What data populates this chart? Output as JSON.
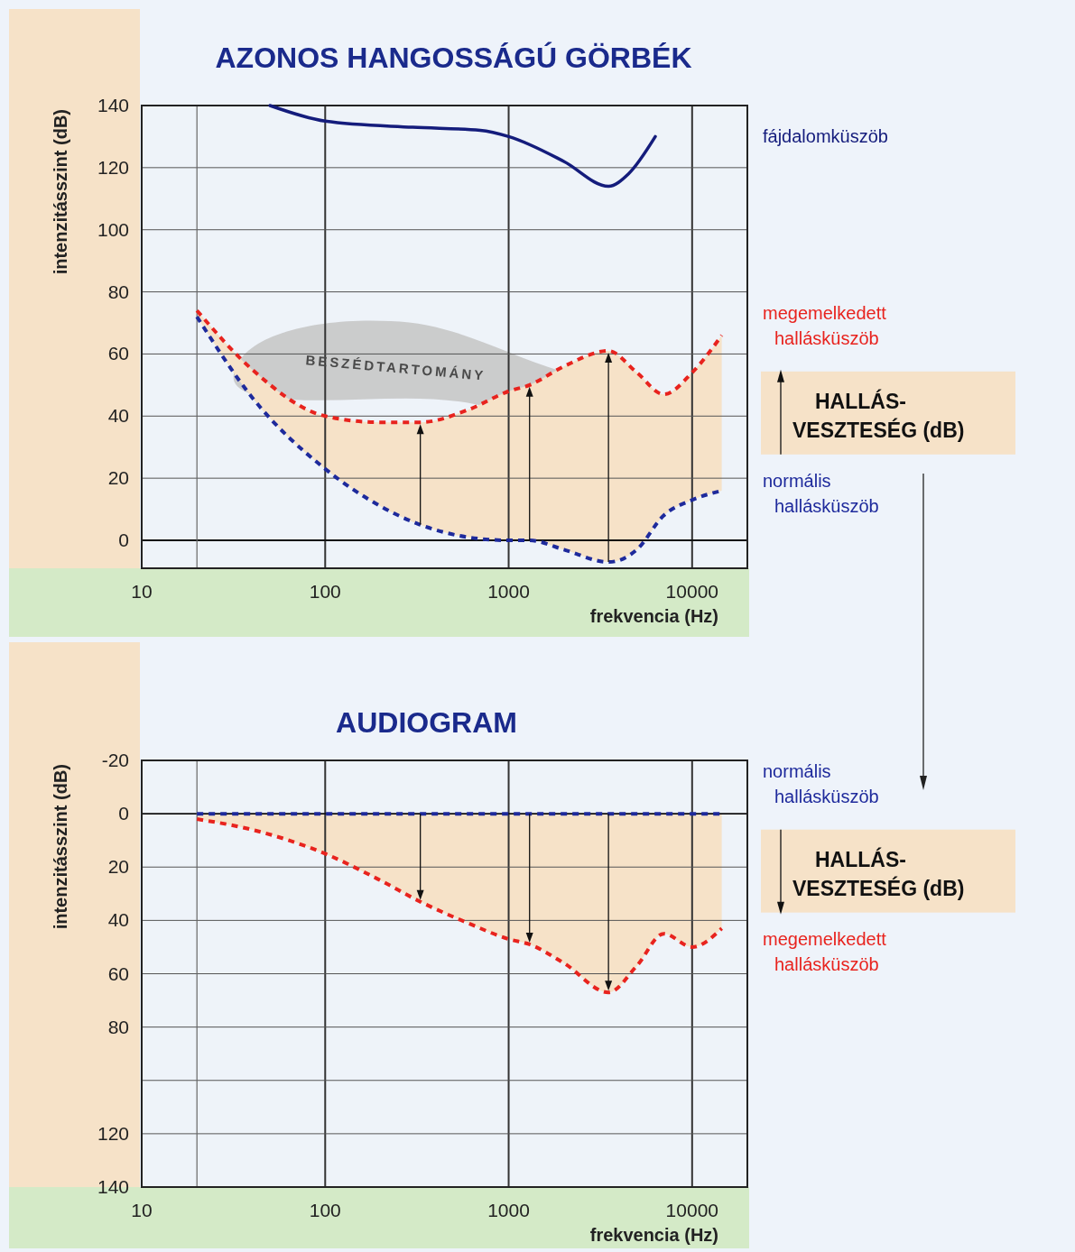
{
  "chart_data": [
    {
      "type": "line",
      "title": "AZONOS HANGOSSÁGÚ GÖRBÉK",
      "xlabel": "frekvencia (Hz)",
      "ylabel": "intenzitásszint (dB)",
      "log": "x",
      "grid": true,
      "legend": false,
      "xlim": [
        10,
        20000
      ],
      "xticks": [
        10,
        100,
        1000,
        10000
      ],
      "ylim": [
        -9,
        140
      ],
      "yticks": [
        0,
        20,
        40,
        60,
        80,
        100,
        120,
        140
      ],
      "ref_lines": [
        {
          "axis": "x",
          "value": 20,
          "color": "#666666"
        }
      ],
      "annotations": [
        "BESZÉDTARTOMÁNY",
        "HALLÁS-VESZTESÉG (dB)"
      ],
      "series": [
        {
          "name": "fájdalomküszöb",
          "color": "#141c7c",
          "line_style": "solid",
          "x": [
            50,
            100,
            300,
            700,
            1000,
            2000,
            3500,
            4500,
            6300
          ],
          "values": [
            140,
            135,
            133,
            132,
            130,
            122,
            114,
            118,
            130
          ]
        },
        {
          "name": "megemelkedett hallásküszöb",
          "color": "#e8231e",
          "line_style": "dashed",
          "x": [
            20,
            40,
            100,
            200,
            330,
            600,
            1000,
            1300,
            2000,
            3500,
            5000,
            7000,
            10000,
            14500
          ],
          "values": [
            74,
            55,
            40,
            38,
            38,
            42,
            48,
            50,
            56,
            61,
            54,
            47,
            54,
            66
          ],
          "lower": [
            72,
            46,
            23,
            11,
            5,
            1,
            0,
            0,
            -3,
            -7,
            -3,
            8,
            13,
            16
          ],
          "upper": [
            74,
            55,
            40,
            38,
            38,
            42,
            48,
            50,
            56,
            61,
            54,
            47,
            54,
            66
          ]
        },
        {
          "name": "normális hallásküszöb",
          "color": "#1e2a9c",
          "line_style": "dashed",
          "x": [
            20,
            40,
            100,
            200,
            330,
            600,
            1000,
            1300,
            2000,
            3500,
            5000,
            7000,
            10000,
            14500
          ],
          "values": [
            72,
            46,
            23,
            11,
            5,
            1,
            0,
            0,
            -3,
            -7,
            -3,
            8,
            13,
            16
          ]
        }
      ]
    },
    {
      "type": "line",
      "title": "AUDIOGRAM",
      "xlabel": "frekvencia (Hz)",
      "ylabel": "intenzitásszint (dB)",
      "log": "x",
      "grid": true,
      "legend": false,
      "xlim": [
        10,
        20000
      ],
      "xticks": [
        10,
        100,
        1000,
        10000
      ],
      "ylim": [
        140,
        -20
      ],
      "yticks": [
        -20,
        0,
        20,
        40,
        60,
        80,
        {
          "value": 100,
          "label": null
        },
        120,
        140
      ],
      "ref_lines": [
        {
          "axis": "x",
          "value": 20,
          "color": "#666666"
        }
      ],
      "annotations": [
        "HALLÁS-VESZTESÉG (dB)"
      ],
      "series": [
        {
          "name": "megemelkedett hallásküszöb",
          "color": "#e8231e",
          "line_style": "dashed",
          "x": [
            20,
            40,
            100,
            200,
            330,
            600,
            1000,
            1300,
            2000,
            3500,
            5000,
            7000,
            10000,
            14500
          ],
          "values": [
            2,
            6,
            15,
            25,
            33,
            41,
            47,
            49,
            56,
            67,
            57,
            45,
            50,
            43
          ],
          "lower": [
            0,
            0,
            0,
            0,
            0,
            0,
            0,
            0,
            0,
            0,
            0,
            0,
            0,
            0
          ],
          "upper": [
            2,
            6,
            15,
            25,
            33,
            41,
            47,
            49,
            56,
            67,
            57,
            45,
            50,
            43
          ]
        },
        {
          "name": "normális hallásküszöb",
          "color": "#1e2a9c",
          "line_style": "dashed",
          "x": [
            20,
            40,
            100,
            200,
            330,
            600,
            1000,
            1300,
            2000,
            3500,
            5000,
            7000,
            10000,
            14500
          ],
          "values": [
            0,
            0,
            0,
            0,
            0,
            0,
            0,
            0,
            0,
            0,
            0,
            0,
            0,
            0
          ]
        }
      ]
    }
  ]
}
